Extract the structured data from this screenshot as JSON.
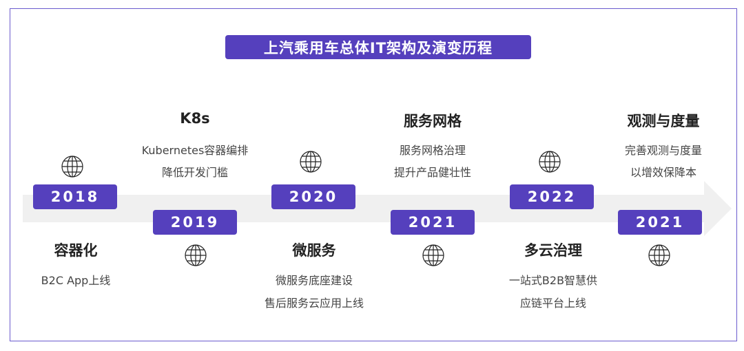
{
  "title": "上汽乘用车总体IT架构及演变历程",
  "milestones": [
    {
      "year": "2018",
      "title": "容器化",
      "lines": [
        "B2C App上线"
      ]
    },
    {
      "year": "2019",
      "title": "K8s",
      "lines": [
        "Kubernetes容器编排",
        "降低开发门槛"
      ]
    },
    {
      "year": "2020",
      "title": "微服务",
      "lines": [
        "微服务底座建设",
        "售后服务云应用上线"
      ]
    },
    {
      "year": "2021",
      "title": "服务网格",
      "lines": [
        "服务网格治理",
        "提升产品健壮性"
      ]
    },
    {
      "year": "2022",
      "title": "多云治理",
      "lines": [
        "一站式B2B智慧供",
        "应链平台上线"
      ]
    },
    {
      "year": "2021",
      "title": "观测与度量",
      "lines": [
        "完善观测与度量",
        "以增效保降本"
      ]
    }
  ],
  "colors": {
    "accent": "#5540bd",
    "band": "#f0f0f0"
  },
  "icon": "globe-icon"
}
